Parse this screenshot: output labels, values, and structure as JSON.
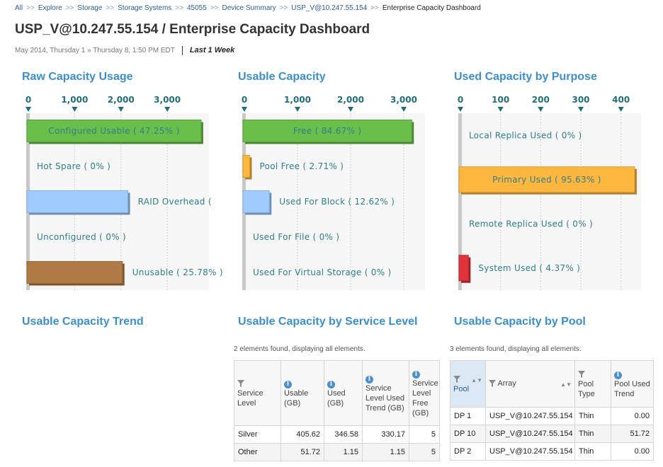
{
  "breadcrumb": [
    {
      "label": "All"
    },
    {
      "label": "Explore"
    },
    {
      "label": "Storage"
    },
    {
      "label": "Storage Systems"
    },
    {
      "label": "45055"
    },
    {
      "label": "Device Summary"
    },
    {
      "label": "USP_V@10.247.55.154"
    },
    {
      "label": "Enterprise Capacity Dashboard"
    }
  ],
  "breadcrumb_sep": ">>",
  "page_title": "USP_V@10.247.55.154 / Enterprise Capacity Dashboard",
  "date_range": {
    "text": "May 2014, Thursday 1 » Thursday 8, 1:50 PM EDT",
    "period": "Last 1 Week"
  },
  "colors": {
    "green": "#6abf4b",
    "blue": "#9fcbff",
    "brown": "#b07a45",
    "orange": "#fdb73f",
    "red": "#e0343a",
    "title": "#3a8fd0",
    "label": "#2f7f8a",
    "tick": "#1e6f7a"
  },
  "sections": {
    "raw": "Raw Capacity Usage",
    "usable": "Usable Capacity",
    "purpose": "Used Capacity by Purpose",
    "trend": "Usable Capacity Trend",
    "service": "Usable Capacity by Service Level",
    "pool": "Usable Capacity by Pool"
  },
  "chart_data": [
    {
      "type": "bar",
      "orientation": "horizontal",
      "title": "Raw Capacity Usage",
      "ticks": [
        "0",
        "1,000",
        "2,000",
        "3,000"
      ],
      "xlim": [
        0,
        3900
      ],
      "categories": [
        "Configured Usable ( 47.25% )",
        "Hot Spare ( 0% )",
        "RAID Overhead (",
        "Unconfigured ( 0% )",
        "Unusable ( 25.78% )"
      ],
      "values": [
        3730,
        0,
        2150,
        0,
        2030
      ],
      "colors": [
        "green",
        "",
        "blue",
        "",
        "brown"
      ],
      "grid": true
    },
    {
      "type": "bar",
      "orientation": "horizontal",
      "title": "Usable Capacity",
      "ticks": [
        "0",
        "1,000",
        "2,000",
        "3,000"
      ],
      "xlim": [
        0,
        3400
      ],
      "categories": [
        "Free ( 84.67% )",
        "Pool Free ( 2.71% )",
        "Used For Block ( 12.62% )",
        "Used For File ( 0% )",
        "Used For Virtual Storage ( 0% )"
      ],
      "values": [
        3150,
        100,
        470,
        0,
        0
      ],
      "colors": [
        "green",
        "orange",
        "blue",
        "",
        ""
      ],
      "grid": true
    },
    {
      "type": "bar",
      "orientation": "horizontal",
      "title": "Used Capacity by Purpose",
      "ticks": [
        "0",
        "100",
        "200",
        "300",
        "400"
      ],
      "xlim": [
        0,
        450
      ],
      "categories": [
        "Local Replica Used ( 0% )",
        "Primary Used ( 95.63% )",
        "Remote Replica Used ( 0% )",
        "System Used ( 4.37% )"
      ],
      "values": [
        0,
        434,
        0,
        20
      ],
      "colors": [
        "",
        "orange",
        "",
        "red"
      ],
      "grid": true
    }
  ],
  "service_table": {
    "count_text": "2 elements found, displaying all elements.",
    "columns": [
      {
        "label": "Service Level",
        "icon": "filter-icon"
      },
      {
        "label": "Usable (GB)",
        "icon": "info-icon"
      },
      {
        "label": "Used (GB)",
        "icon": "info-icon"
      },
      {
        "label": "Service Level Used Trend (GB)",
        "icon": "info-icon"
      },
      {
        "label": "Service Level Free (GB)",
        "icon": "info-icon"
      }
    ],
    "rows": [
      [
        "Silver",
        "405.62",
        "346.58",
        "330.17",
        "5"
      ],
      [
        "Other",
        "51.72",
        "1.15",
        "1.15",
        "5"
      ]
    ]
  },
  "pool_table": {
    "count_text": "3 elements found, displaying all elements.",
    "columns": [
      {
        "label": "Pool",
        "icon": "filter-icon"
      },
      {
        "label": "Array",
        "icon": "filter-icon"
      },
      {
        "label": "Pool Type",
        "icon": "filter-icon"
      },
      {
        "label": "Pool Used Trend",
        "icon": "info-icon"
      }
    ],
    "rows": [
      [
        "DP 1",
        "USP_V@10.247.55.154",
        "Thin",
        "0.00"
      ],
      [
        "DP 10",
        "USP_V@10.247.55.154",
        "Thin",
        "51.72"
      ],
      [
        "DP 2",
        "USP_V@10.247.55.154",
        "Thin",
        "0.00"
      ]
    ]
  }
}
